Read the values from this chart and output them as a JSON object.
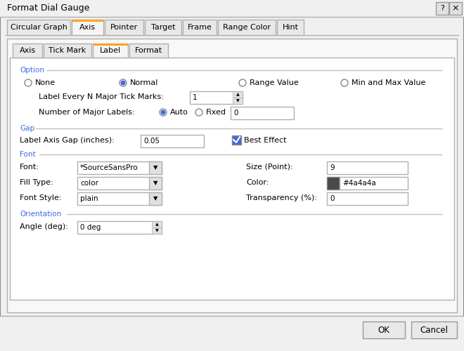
{
  "title": "Format Dial Gauge",
  "bg_color": "#f0f0f0",
  "dialog_bg": "#f0f0f0",
  "panel_bg": "#ffffff",
  "top_tabs": [
    "Circular Graph",
    "Axis",
    "Pointer",
    "Target",
    "Frame",
    "Range Color",
    "Hint"
  ],
  "active_top_tab": "Axis",
  "sub_tabs": [
    "Axis",
    "Tick Mark",
    "Label",
    "Format"
  ],
  "active_sub_tab": "Label",
  "section_color": "#4169e1",
  "sections": [
    "Option",
    "Gap",
    "Font",
    "Orientation"
  ],
  "radio_options_row1": [
    "None",
    "Normal",
    "Range Value",
    "Min and Max Value"
  ],
  "radio_selected_row1": "Normal",
  "label_every_n": "1",
  "num_major_labels_radio": [
    "Auto",
    "Fixed"
  ],
  "num_major_labels_selected": "Auto",
  "fixed_value": "0",
  "gap_label": "Label Axis Gap (inches):",
  "gap_value": "0.05",
  "best_effect_checked": true,
  "font_label": "Font:",
  "font_value": "*SourceSansPro",
  "size_point_label": "Size (Point):",
  "size_point_value": "9",
  "fill_type_label": "Fill Type:",
  "fill_type_value": "color",
  "color_label": "Color:",
  "color_value": "#4a4a4a",
  "color_hex_text": "#4a4a4a",
  "font_style_label": "Font Style:",
  "font_style_value": "plain",
  "transparency_label": "Transparency (%):",
  "transparency_value": "0",
  "angle_label": "Angle (deg):",
  "angle_value": "0 deg",
  "ok_button": "OK",
  "cancel_button": "Cancel",
  "tab_active_color": "#f5a623",
  "tab_border_color": "#b0b0b0",
  "text_color": "#000000",
  "input_bg": "#ffffff",
  "input_border": "#b0b0b0",
  "checkbox_color": "#4169e1",
  "radio_color": "#4169e1"
}
